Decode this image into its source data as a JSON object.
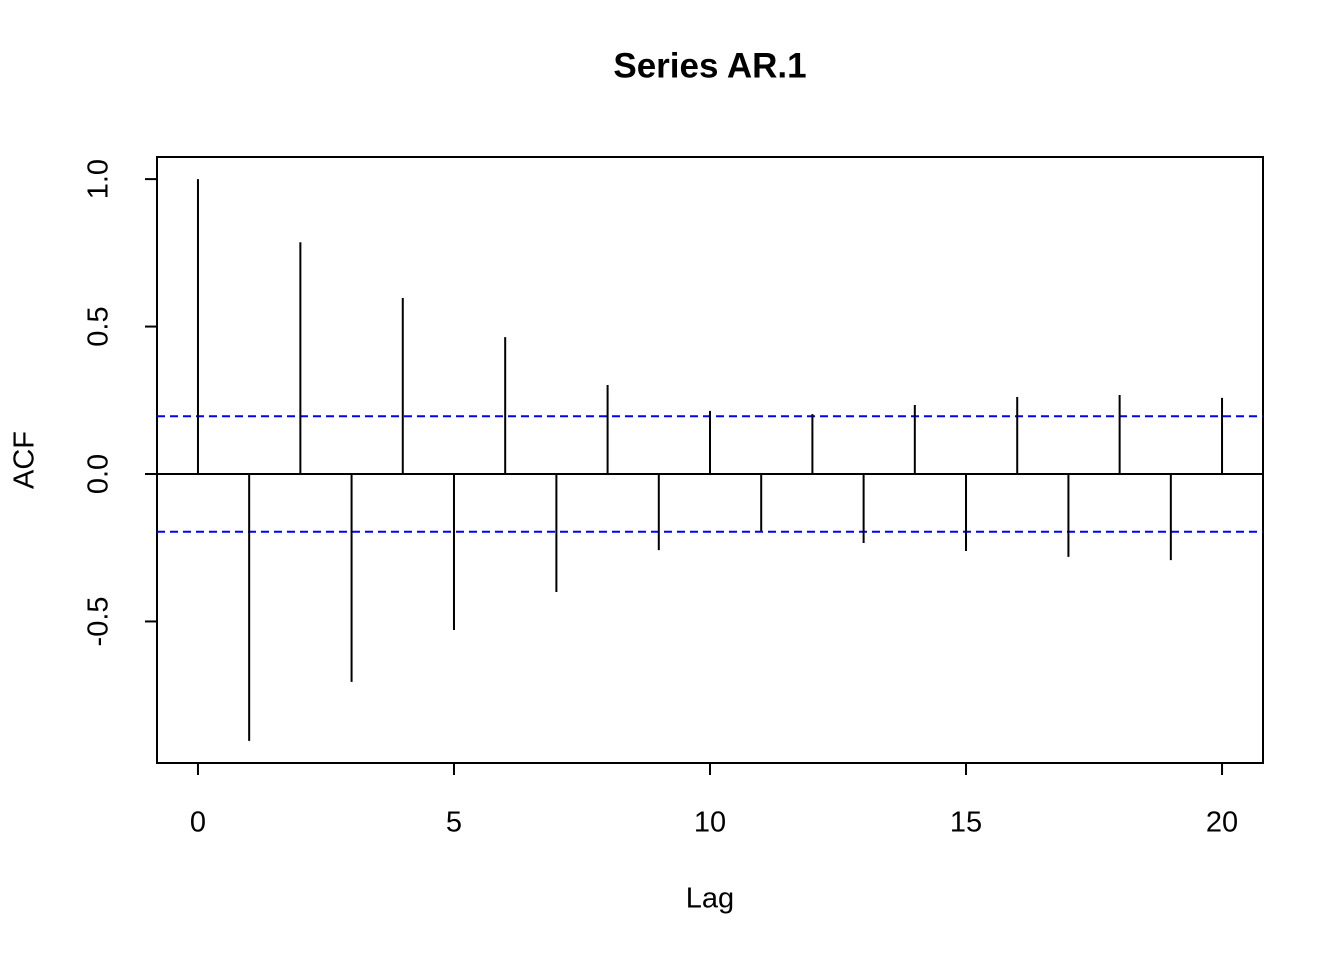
{
  "chart_data": {
    "type": "stem",
    "title": "Series  AR.1",
    "x_label": "Lag",
    "y_label": "ACF",
    "x": [
      0,
      1,
      2,
      3,
      4,
      5,
      6,
      7,
      8,
      9,
      10,
      11,
      12,
      13,
      14,
      15,
      16,
      17,
      18,
      19,
      20
    ],
    "values": [
      1.0,
      -0.905,
      0.786,
      -0.705,
      0.597,
      -0.529,
      0.464,
      -0.4,
      0.302,
      -0.258,
      0.214,
      -0.193,
      0.203,
      -0.234,
      0.234,
      -0.261,
      0.261,
      -0.281,
      0.268,
      -0.292,
      0.258
    ],
    "color": "#000000",
    "ci": [
      -0.196,
      0.196
    ],
    "ci_color": "#0000ff",
    "xlim": [
      -0.8,
      20.8
    ],
    "ylim": [
      -0.98,
      1.075
    ],
    "xticks": [
      0,
      5,
      10,
      15,
      20
    ],
    "yticks": [
      -0.5,
      {
        "value": 0,
        "label": "0.0"
      },
      0.5,
      {
        "value": 1,
        "label": "1.0"
      }
    ]
  }
}
